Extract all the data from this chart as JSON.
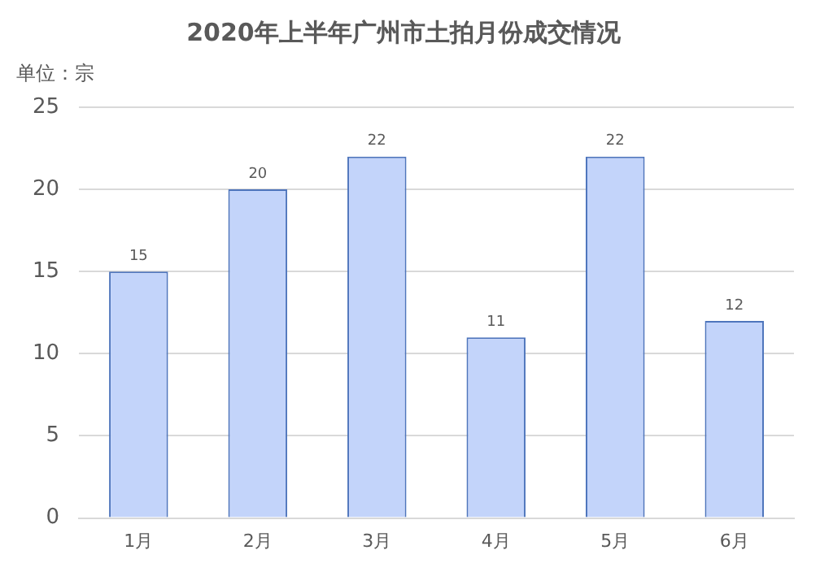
{
  "chart_data": {
    "type": "bar",
    "title": "2020年上半年广州市土拍月份成交情况",
    "ylabel": "单位：宗",
    "categories": [
      "1月",
      "2月",
      "3月",
      "4月",
      "5月",
      "6月"
    ],
    "series": [
      {
        "color": "#c3d4fa",
        "values": [
          15,
          20,
          22,
          11,
          22,
          12
        ]
      }
    ],
    "ylim": [
      0,
      25
    ],
    "yticks": [
      0,
      5,
      10,
      15,
      20,
      25
    ],
    "grid": "y",
    "legend": false,
    "data_labels": true
  }
}
